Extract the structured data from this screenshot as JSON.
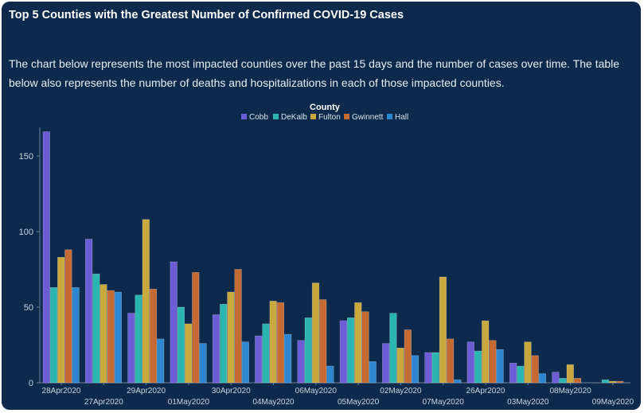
{
  "header": {
    "title": "Top 5 Counties with the Greatest Number of Confirmed COVID-19 Cases",
    "description": "The chart below represents the most impacted counties over the past 15 days and the number of cases over time. The table below also represents the number of deaths and hospitalizations in each of those impacted counties."
  },
  "chart_data": {
    "type": "bar",
    "legend_title": "County",
    "legend_position": "top-center",
    "grid": false,
    "ylim": [
      0,
      170
    ],
    "yticks": [
      0,
      50,
      100,
      150
    ],
    "categories": [
      "28Apr2020",
      "27Apr2020",
      "29Apr2020",
      "01May2020",
      "30Apr2020",
      "04May2020",
      "06May2020",
      "05May2020",
      "02May2020",
      "07May2020",
      "26Apr2020",
      "03May2020",
      "08May2020",
      "09May2020"
    ],
    "series": [
      {
        "name": "Cobb",
        "color": "#6c5cd6",
        "values": [
          166,
          95,
          46,
          80,
          45,
          31,
          28,
          41,
          26,
          20,
          27,
          13,
          7,
          0
        ]
      },
      {
        "name": "DeKalb",
        "color": "#2bb5b0",
        "values": [
          63,
          72,
          58,
          50,
          52,
          39,
          43,
          43,
          46,
          20,
          21,
          11,
          3,
          2
        ]
      },
      {
        "name": "Fulton",
        "color": "#c9a93e",
        "values": [
          83,
          65,
          108,
          39,
          60,
          54,
          66,
          53,
          23,
          70,
          41,
          27,
          12,
          1
        ]
      },
      {
        "name": "Gwinnett",
        "color": "#c46a32",
        "values": [
          88,
          61,
          62,
          73,
          75,
          53,
          55,
          47,
          35,
          29,
          28,
          18,
          3,
          1
        ]
      },
      {
        "name": "Hall",
        "color": "#2e86d0",
        "values": [
          63,
          60,
          29,
          26,
          27,
          32,
          11,
          14,
          18,
          2,
          22,
          6,
          0,
          0
        ]
      }
    ]
  }
}
